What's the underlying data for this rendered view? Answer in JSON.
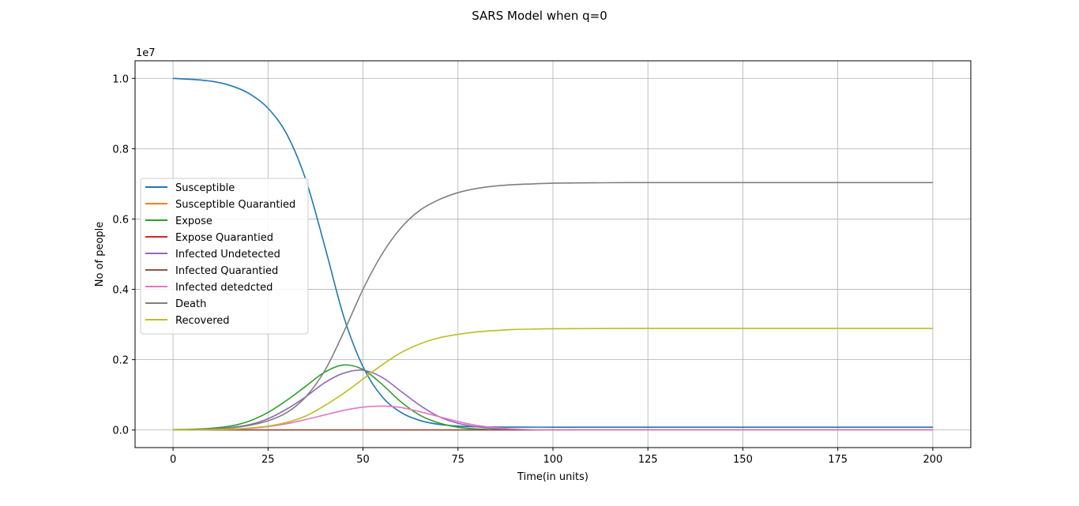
{
  "chart_data": {
    "type": "line",
    "title": "SARS Model when q=0",
    "xlabel": "Time(in units)",
    "ylabel": "No of people",
    "y_offset_label": "1e7",
    "xlim": [
      -10,
      210
    ],
    "ylim": [
      -500000,
      10500000
    ],
    "x_ticks": [
      0,
      25,
      50,
      75,
      100,
      125,
      150,
      175,
      200
    ],
    "x_tick_labels": [
      "0",
      "25",
      "50",
      "75",
      "100",
      "125",
      "150",
      "175",
      "200"
    ],
    "y_ticks": [
      0,
      2000000,
      4000000,
      6000000,
      8000000,
      10000000
    ],
    "y_tick_labels": [
      "0.0",
      "0.2",
      "0.4",
      "0.6",
      "0.8",
      "1.0"
    ],
    "grid": true,
    "legend_position": "center-left",
    "x": [
      0,
      5,
      10,
      15,
      20,
      25,
      30,
      35,
      40,
      45,
      50,
      55,
      60,
      65,
      70,
      75,
      80,
      85,
      90,
      95,
      100,
      110,
      120,
      130,
      140,
      150,
      160,
      170,
      180,
      190,
      200
    ],
    "series": [
      {
        "name": "Susceptible",
        "color": "#1f77b4",
        "values": [
          10000000,
          9970000,
          9920000,
          9800000,
          9570000,
          9150000,
          8400000,
          7100000,
          5200000,
          3200000,
          1800000,
          950000,
          500000,
          270000,
          160000,
          110000,
          90000,
          85000,
          82000,
          81000,
          80000,
          80000,
          80000,
          80000,
          80000,
          80000,
          80000,
          80000,
          80000,
          80000,
          80000
        ]
      },
      {
        "name": "Susceptible Quarantied",
        "color": "#ff7f0e",
        "values": [
          0,
          0,
          0,
          0,
          0,
          0,
          0,
          0,
          0,
          0,
          0,
          0,
          0,
          0,
          0,
          0,
          0,
          0,
          0,
          0,
          0,
          0,
          0,
          0,
          0,
          0,
          0,
          0,
          0,
          0,
          0
        ]
      },
      {
        "name": "Expose",
        "color": "#2ca02c",
        "values": [
          10000,
          20000,
          50000,
          110000,
          250000,
          500000,
          850000,
          1250000,
          1650000,
          1850000,
          1720000,
          1300000,
          800000,
          420000,
          200000,
          80000,
          30000,
          10000,
          5000,
          2000,
          1000,
          0,
          0,
          0,
          0,
          0,
          0,
          0,
          0,
          0,
          0
        ]
      },
      {
        "name": "Expose Quarantied",
        "color": "#d62728",
        "values": [
          0,
          0,
          0,
          0,
          0,
          0,
          0,
          0,
          0,
          0,
          0,
          0,
          0,
          0,
          0,
          0,
          0,
          0,
          0,
          0,
          0,
          0,
          0,
          0,
          0,
          0,
          0,
          0,
          0,
          0,
          0
        ]
      },
      {
        "name": "Infected Undetected",
        "color": "#9467bd",
        "values": [
          5000,
          12000,
          30000,
          70000,
          150000,
          320000,
          600000,
          950000,
          1350000,
          1620000,
          1700000,
          1500000,
          1100000,
          700000,
          380000,
          190000,
          90000,
          40000,
          15000,
          5000,
          2000,
          0,
          0,
          0,
          0,
          0,
          0,
          0,
          0,
          0,
          0
        ]
      },
      {
        "name": "Infected Quarantied",
        "color": "#8c564b",
        "values": [
          0,
          0,
          0,
          0,
          0,
          0,
          0,
          0,
          0,
          0,
          0,
          0,
          0,
          0,
          0,
          0,
          0,
          0,
          0,
          0,
          0,
          0,
          0,
          0,
          0,
          0,
          0,
          0,
          0,
          0,
          0
        ]
      },
      {
        "name": "Infected detedcted",
        "color": "#e377c2",
        "values": [
          0,
          3000,
          8000,
          20000,
          45000,
          95000,
          180000,
          300000,
          430000,
          560000,
          650000,
          680000,
          640000,
          520000,
          380000,
          240000,
          130000,
          65000,
          30000,
          10000,
          4000,
          0,
          0,
          0,
          0,
          0,
          0,
          0,
          0,
          0,
          0
        ]
      },
      {
        "name": "Death",
        "color": "#7f7f7f",
        "values": [
          0,
          8000,
          25000,
          60000,
          130000,
          260000,
          500000,
          950000,
          1700000,
          2800000,
          4000000,
          5000000,
          5750000,
          6250000,
          6550000,
          6750000,
          6870000,
          6940000,
          6980000,
          7000000,
          7020000,
          7030000,
          7035000,
          7035000,
          7035000,
          7035000,
          7035000,
          7035000,
          7035000,
          7035000,
          7035000
        ]
      },
      {
        "name": "Recovered",
        "color": "#bcbd22",
        "values": [
          0,
          3000,
          10000,
          25000,
          55000,
          110000,
          220000,
          400000,
          700000,
          1050000,
          1450000,
          1850000,
          2200000,
          2450000,
          2620000,
          2720000,
          2790000,
          2830000,
          2860000,
          2870000,
          2880000,
          2885000,
          2888000,
          2888000,
          2888000,
          2888000,
          2888000,
          2888000,
          2888000,
          2888000,
          2888000
        ]
      }
    ]
  }
}
